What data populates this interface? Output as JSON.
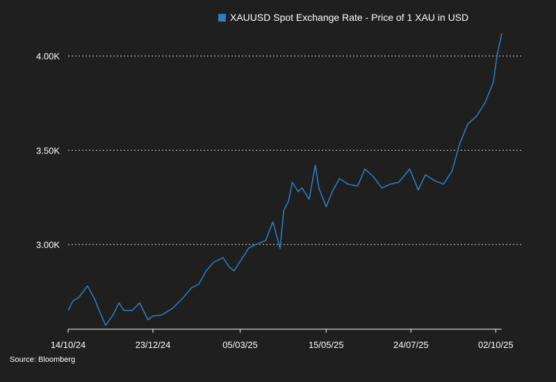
{
  "chart_data": {
    "type": "line",
    "title": "",
    "xlabel": "",
    "ylabel": "",
    "ylim": [
      2550,
      4150
    ],
    "x_range": [
      "2024-10-14",
      "2025-10-07"
    ],
    "grid": "horizontal dotted",
    "legend": "top-center",
    "series": [
      {
        "name": "XAUUSD Spot Exchange Rate - Price of 1 XAU in USD",
        "color": "#2f7dc0",
        "x": [
          "2024-10-14",
          "2024-10-18",
          "2024-10-23",
          "2024-10-30",
          "2024-11-05",
          "2024-11-08",
          "2024-11-14",
          "2024-11-20",
          "2024-11-25",
          "2024-11-29",
          "2024-12-06",
          "2024-12-12",
          "2024-12-19",
          "2024-12-23",
          "2024-12-30",
          "2025-01-08",
          "2025-01-16",
          "2025-01-24",
          "2025-01-30",
          "2025-02-05",
          "2025-02-11",
          "2025-02-19",
          "2025-02-24",
          "2025-02-28",
          "2025-03-05",
          "2025-03-12",
          "2025-03-18",
          "2025-03-26",
          "2025-04-01",
          "2025-04-07",
          "2025-04-10",
          "2025-04-14",
          "2025-04-17",
          "2025-04-22",
          "2025-04-25",
          "2025-05-01",
          "2025-05-06",
          "2025-05-09",
          "2025-05-15",
          "2025-05-20",
          "2025-05-26",
          "2025-06-02",
          "2025-06-10",
          "2025-06-16",
          "2025-06-23",
          "2025-06-30",
          "2025-07-07",
          "2025-07-14",
          "2025-07-23",
          "2025-07-30",
          "2025-08-05",
          "2025-08-12",
          "2025-08-20",
          "2025-08-27",
          "2025-09-02",
          "2025-09-09",
          "2025-09-16",
          "2025-09-23",
          "2025-09-30",
          "2025-10-03",
          "2025-10-07"
        ],
        "values": [
          2650,
          2700,
          2720,
          2780,
          2710,
          2660,
          2570,
          2625,
          2690,
          2650,
          2650,
          2690,
          2600,
          2620,
          2625,
          2660,
          2710,
          2770,
          2790,
          2860,
          2905,
          2930,
          2880,
          2860,
          2910,
          2980,
          3000,
          3020,
          3120,
          2980,
          3180,
          3230,
          3330,
          3280,
          3300,
          3240,
          3420,
          3300,
          3200,
          3280,
          3350,
          3320,
          3310,
          3400,
          3360,
          3300,
          3320,
          3330,
          3400,
          3290,
          3370,
          3340,
          3320,
          3390,
          3530,
          3640,
          3680,
          3750,
          3860,
          4000,
          4120
        ]
      }
    ],
    "y_ticks": [
      {
        "value": 3000,
        "label": "3.00K"
      },
      {
        "value": 3500,
        "label": "3.50K"
      },
      {
        "value": 4000,
        "label": "4.00K"
      }
    ],
    "x_ticks": [
      {
        "date": "2024-10-14",
        "label": "14/10/24"
      },
      {
        "date": "2024-12-23",
        "label": "23/12/24"
      },
      {
        "date": "2025-03-05",
        "label": "05/03/25"
      },
      {
        "date": "2025-05-15",
        "label": "15/05/25"
      },
      {
        "date": "2025-07-24",
        "label": "24/07/25"
      },
      {
        "date": "2025-10-02",
        "label": "02/10/25"
      }
    ]
  },
  "legend": {
    "label": "XAUUSD Spot Exchange Rate - Price of 1 XAU in USD",
    "color": "#2f7dc0"
  },
  "source": "Source: Bloomberg"
}
